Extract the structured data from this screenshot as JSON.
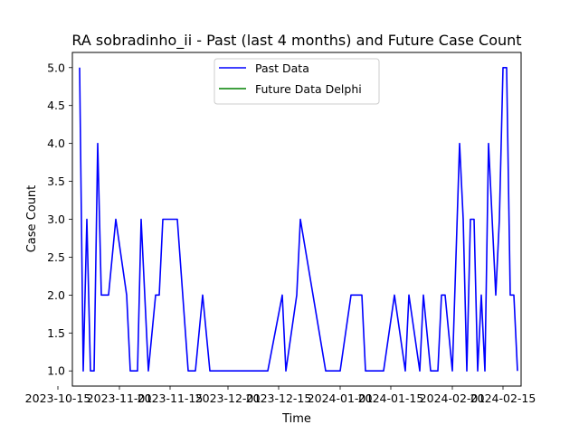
{
  "chart_data": {
    "type": "line",
    "title": "RA sobradinho_ii - Past (last 4 months) and Future Case Count",
    "xlabel": "Time",
    "ylabel": "Case Count",
    "xlim": [
      "2023-10-19",
      "2024-02-20"
    ],
    "ylim": [
      0.8,
      5.2
    ],
    "x_ticks": [
      "2023-10-15",
      "2023-11-01",
      "2023-11-15",
      "2023-12-01",
      "2023-12-15",
      "2024-01-01",
      "2024-01-15",
      "2024-02-01",
      "2024-02-15"
    ],
    "y_ticks": [
      "1.0",
      "1.5",
      "2.0",
      "2.5",
      "3.0",
      "3.5",
      "4.0",
      "4.5",
      "5.0"
    ],
    "legend": {
      "placement": "upper center",
      "entries": [
        "Past Data",
        "Future Data Delphi"
      ]
    },
    "colors": {
      "past": "#0000ff",
      "future": "#008000"
    },
    "series": [
      {
        "name": "Past Data",
        "color": "#0000ff",
        "points": [
          [
            "2023-10-21",
            5
          ],
          [
            "2023-10-22",
            1
          ],
          [
            "2023-10-23",
            3
          ],
          [
            "2023-10-24",
            1
          ],
          [
            "2023-10-25",
            1
          ],
          [
            "2023-10-26",
            4
          ],
          [
            "2023-10-27",
            2
          ],
          [
            "2023-10-29",
            2
          ],
          [
            "2023-10-31",
            3
          ],
          [
            "2023-11-03",
            2
          ],
          [
            "2023-11-04",
            1
          ],
          [
            "2023-11-06",
            1
          ],
          [
            "2023-11-07",
            3
          ],
          [
            "2023-11-09",
            1
          ],
          [
            "2023-11-11",
            2
          ],
          [
            "2023-11-12",
            2
          ],
          [
            "2023-11-13",
            3
          ],
          [
            "2023-11-17",
            3
          ],
          [
            "2023-11-20",
            1
          ],
          [
            "2023-11-22",
            1
          ],
          [
            "2023-11-24",
            2
          ],
          [
            "2023-11-26",
            1
          ],
          [
            "2023-12-12",
            1
          ],
          [
            "2023-12-16",
            2
          ],
          [
            "2023-12-17",
            1
          ],
          [
            "2023-12-20",
            2
          ],
          [
            "2023-12-21",
            3
          ],
          [
            "2023-12-28",
            1
          ],
          [
            "2024-01-01",
            1
          ],
          [
            "2024-01-04",
            2
          ],
          [
            "2024-01-07",
            2
          ],
          [
            "2024-01-08",
            1
          ],
          [
            "2024-01-13",
            1
          ],
          [
            "2024-01-16",
            2
          ],
          [
            "2024-01-19",
            1
          ],
          [
            "2024-01-20",
            2
          ],
          [
            "2024-01-23",
            1
          ],
          [
            "2024-01-24",
            2
          ],
          [
            "2024-01-26",
            1
          ],
          [
            "2024-01-28",
            1
          ],
          [
            "2024-01-29",
            2
          ],
          [
            "2024-01-30",
            2
          ],
          [
            "2024-02-01",
            1
          ],
          [
            "2024-02-03",
            4
          ],
          [
            "2024-02-04",
            3
          ],
          [
            "2024-02-05",
            1
          ],
          [
            "2024-02-06",
            3
          ],
          [
            "2024-02-07",
            3
          ],
          [
            "2024-02-08",
            1
          ],
          [
            "2024-02-09",
            2
          ],
          [
            "2024-02-10",
            1
          ],
          [
            "2024-02-11",
            4
          ],
          [
            "2024-02-13",
            2
          ],
          [
            "2024-02-14",
            3
          ],
          [
            "2024-02-15",
            5
          ],
          [
            "2024-02-16",
            5
          ],
          [
            "2024-02-17",
            2
          ],
          [
            "2024-02-18",
            2
          ],
          [
            "2024-02-19",
            1
          ]
        ]
      },
      {
        "name": "Future Data Delphi",
        "color": "#008000",
        "points": []
      }
    ]
  }
}
